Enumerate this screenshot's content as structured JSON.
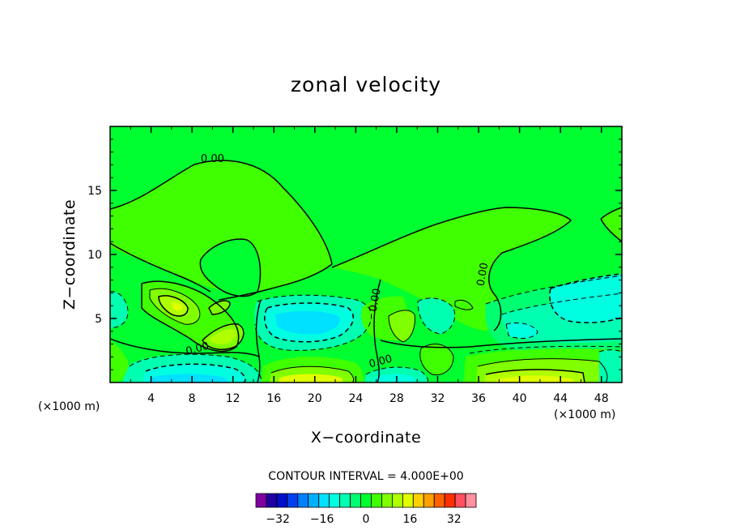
{
  "chart_data": {
    "type": "heatmap",
    "title": "zonal velocity",
    "xlabel": "X−coordinate",
    "ylabel": "Z−coordinate",
    "x_unit_left": "(×1000 m)",
    "x_unit_right": "(×1000 m)",
    "xlim": [
      0,
      50
    ],
    "ylim": [
      0,
      20
    ],
    "x_ticks": [
      "4",
      "8",
      "12",
      "16",
      "20",
      "24",
      "28",
      "32",
      "36",
      "40",
      "44",
      "48"
    ],
    "x_tick_values": [
      4,
      8,
      12,
      16,
      20,
      24,
      28,
      32,
      36,
      40,
      44,
      48
    ],
    "y_ticks": [
      "5",
      "10",
      "15"
    ],
    "y_tick_values": [
      5,
      10,
      15
    ],
    "contour_interval_text": "CONTOUR INTERVAL = 4.000E+00",
    "contour_labels": [
      {
        "text": "0.00",
        "x": 10,
        "y": 17.2
      },
      {
        "text": "0.00",
        "x": 8.6,
        "y": 2.4
      },
      {
        "text": "0.00",
        "x": 26.2,
        "y": 6.4
      },
      {
        "text": "0.00",
        "x": 26.5,
        "y": 1.4
      },
      {
        "text": "0.00",
        "x": 36.7,
        "y": 8.4
      }
    ],
    "colorbar": {
      "tick_labels": [
        "−32",
        "−16",
        "0",
        "16",
        "32"
      ],
      "tick_values": [
        -32,
        -16,
        0,
        16,
        32
      ],
      "levels": [
        -40,
        -36,
        -32,
        -28,
        -24,
        -20,
        -16,
        -12,
        -8,
        -4,
        0,
        4,
        8,
        12,
        16,
        20,
        24,
        28,
        32,
        36,
        40
      ],
      "colors": [
        "#8000a0",
        "#2000a0",
        "#0010c8",
        "#0040f0",
        "#0080ff",
        "#00b0ff",
        "#00e0ff",
        "#00ffe0",
        "#00ffb0",
        "#00ff70",
        "#00ff30",
        "#40ff00",
        "#80ff00",
        "#b0ff00",
        "#e0ff00",
        "#ffd000",
        "#ffa000",
        "#ff6000",
        "#ff3000",
        "#ff5060",
        "#ff90a0"
      ]
    },
    "field_colors": {
      "zero_band": "#00ff30",
      "light_positive": "#40ff00",
      "positive": "#80ff00",
      "strong_positive": "#b0ff00",
      "stronger_positive": "#e0ff00",
      "peak_positive": "#ffd000",
      "light_negative": "#00ff70",
      "negative": "#00ffb0",
      "strong_negative": "#00ffe0",
      "stronger_negative": "#00e0ff"
    }
  }
}
